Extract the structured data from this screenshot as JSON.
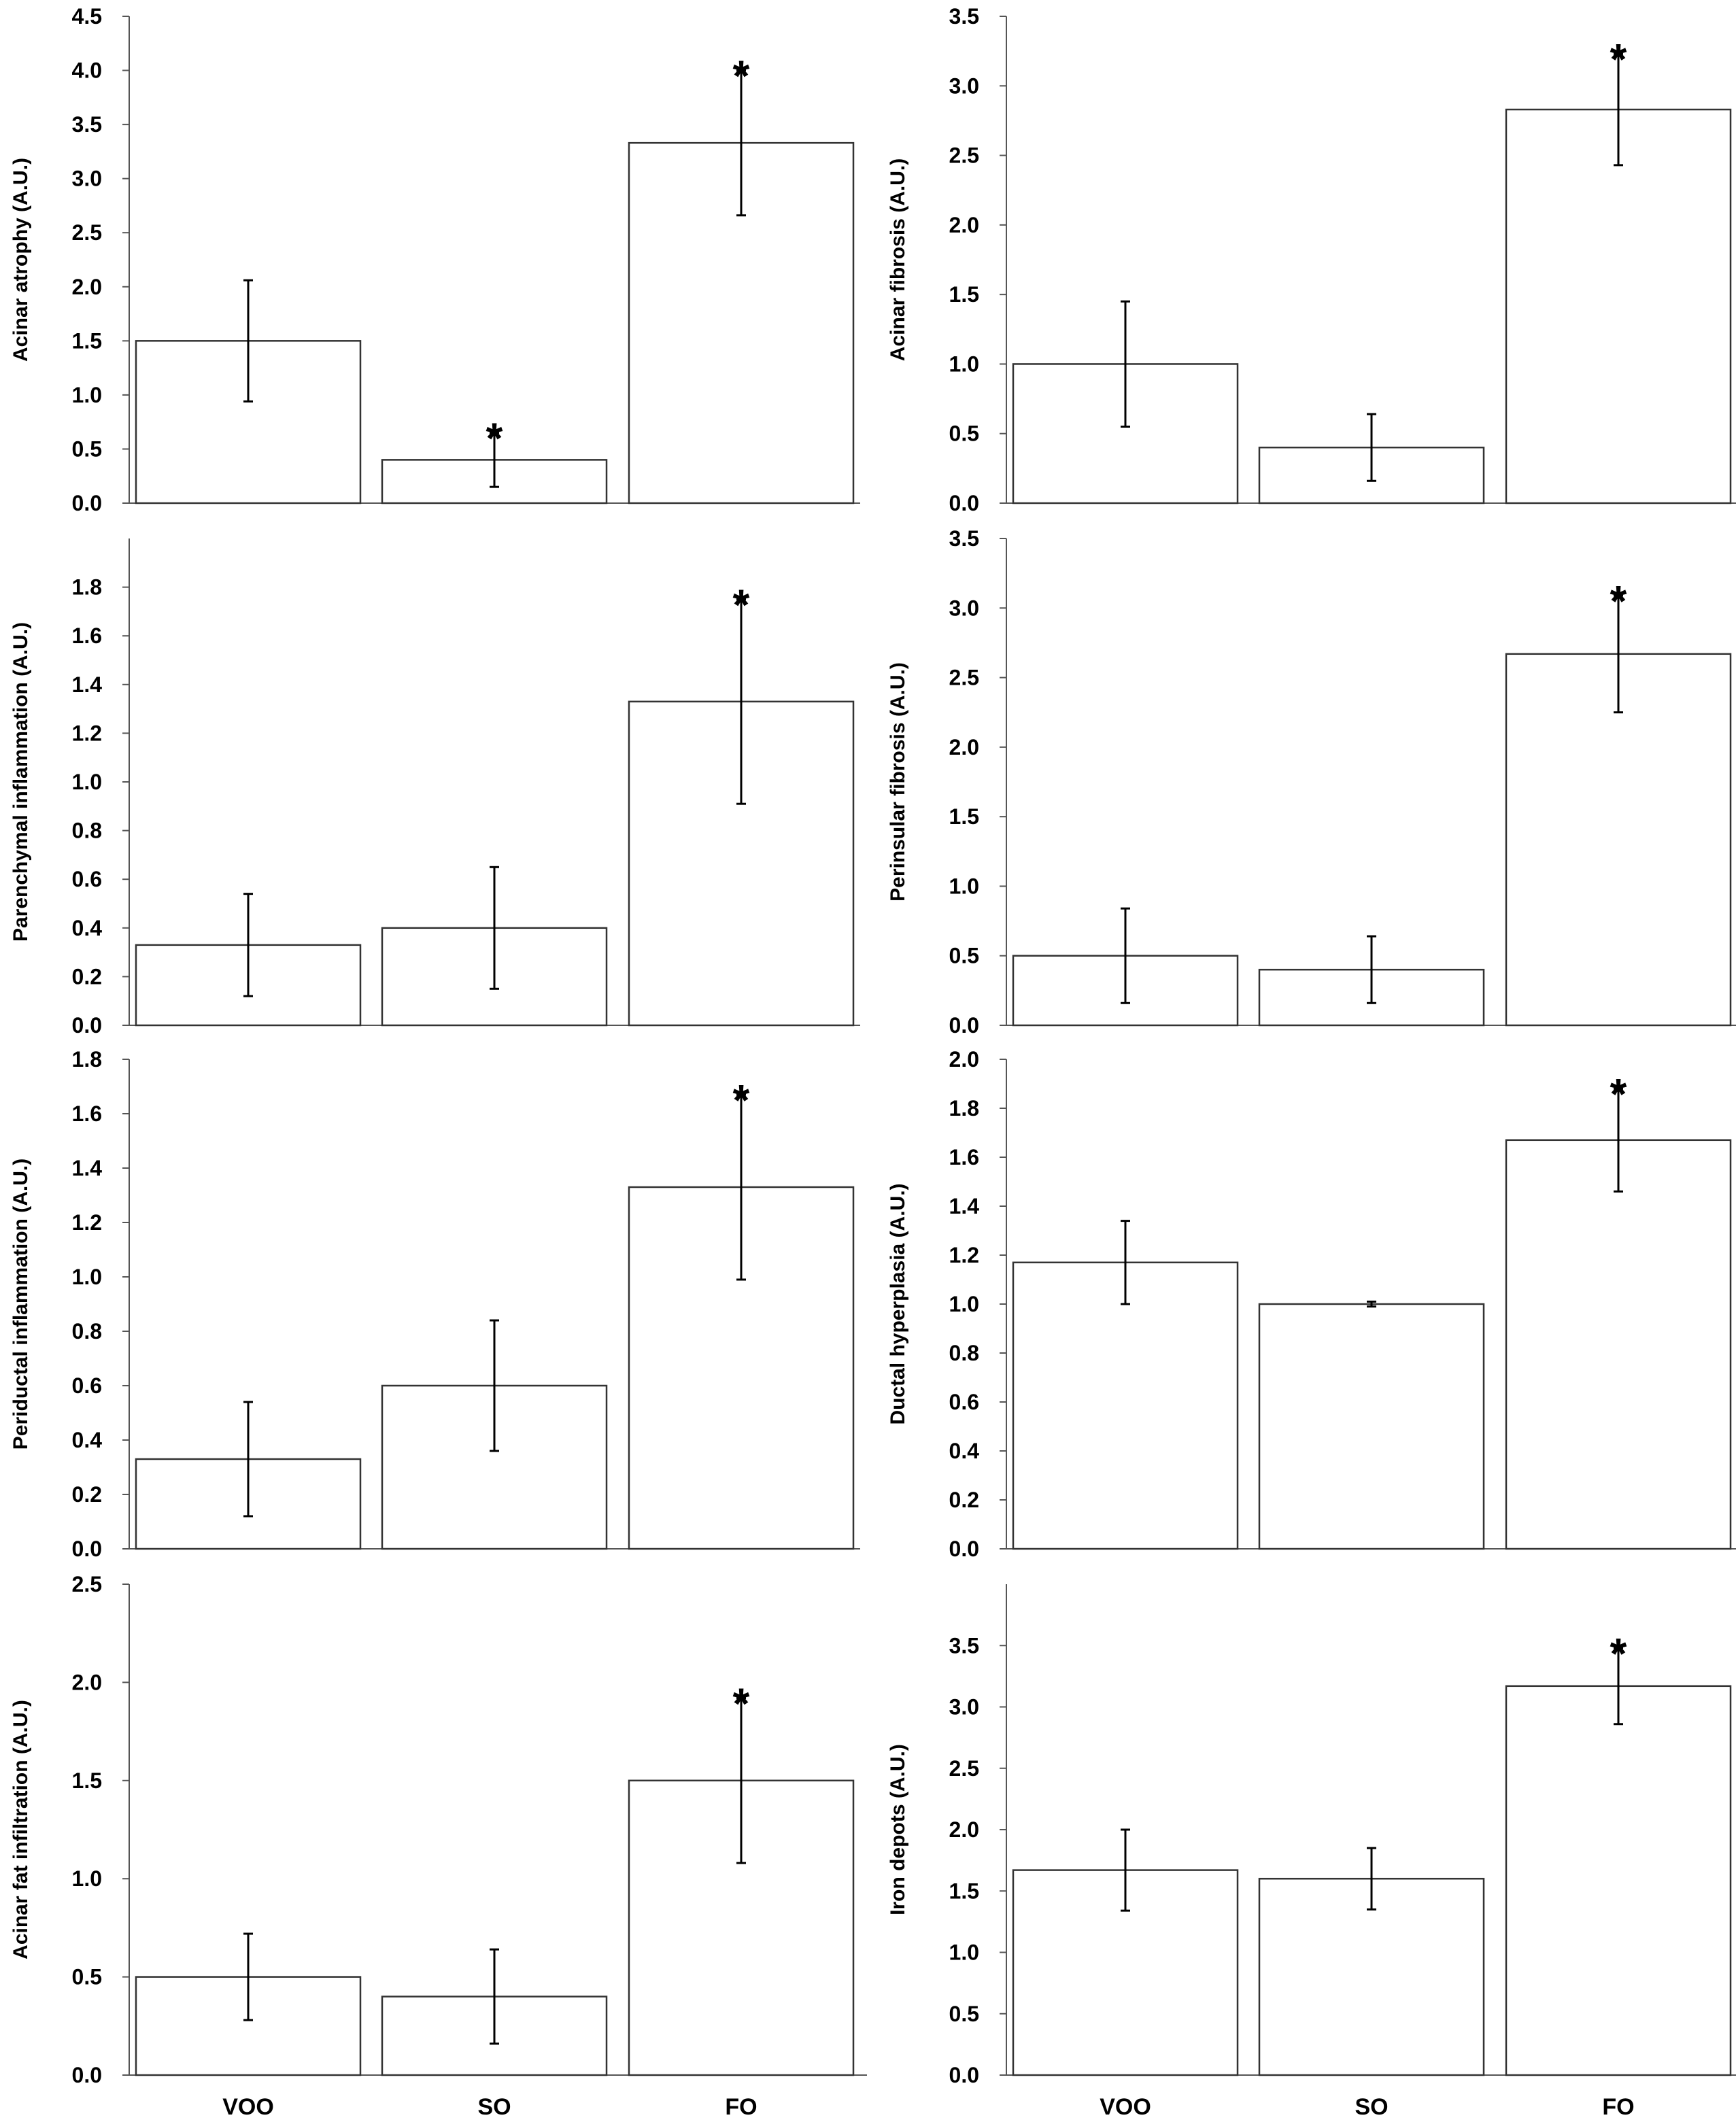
{
  "chart_data": [
    {
      "type": "bar",
      "ylabel": "Acinar atrophy (A.U.)",
      "categories": [
        "VOO",
        "SO",
        "FO"
      ],
      "values": [
        1.5,
        0.4,
        3.33
      ],
      "errors": [
        0.56,
        0.25,
        0.67
      ],
      "significant": [
        false,
        true,
        true
      ],
      "ylim": [
        0,
        4.5
      ],
      "yticks": [
        "0.0",
        "0.5",
        "1.0",
        "1.5",
        "2.0",
        "2.5",
        "3.0",
        "3.5",
        "4.0",
        "4.5"
      ],
      "xtick_labels_visible": false
    },
    {
      "type": "bar",
      "ylabel": "Acinar fibrosis (A.U.)",
      "categories": [
        "VOO",
        "SO",
        "FO"
      ],
      "values": [
        1.0,
        0.4,
        2.83
      ],
      "errors": [
        0.45,
        0.24,
        0.4
      ],
      "significant": [
        false,
        false,
        true
      ],
      "ylim": [
        0,
        3.5
      ],
      "yticks": [
        "0.0",
        "0.5",
        "1.0",
        "1.5",
        "2.0",
        "2.5",
        "3.0",
        "3.5"
      ],
      "xtick_labels_visible": false
    },
    {
      "type": "bar",
      "ylabel": "Parenchymal inflammation (A.U.)",
      "categories": [
        "VOO",
        "SO",
        "FO"
      ],
      "values": [
        0.33,
        0.4,
        1.33
      ],
      "errors": [
        0.21,
        0.25,
        0.42
      ],
      "significant": [
        false,
        false,
        true
      ],
      "ylim": [
        0,
        2.0
      ],
      "yticks": [
        "0.0",
        "0.2",
        "0.4",
        "0.6",
        "0.8",
        "1.0",
        "1.2",
        "1.4",
        "1.6",
        "1.8"
      ],
      "xtick_labels_visible": false
    },
    {
      "type": "bar",
      "ylabel": "Perinsular fibrosis (A.U.)",
      "categories": [
        "VOO",
        "SO",
        "FO"
      ],
      "values": [
        0.5,
        0.4,
        2.67
      ],
      "errors": [
        0.34,
        0.24,
        0.42
      ],
      "significant": [
        false,
        false,
        true
      ],
      "ylim": [
        0,
        3.5
      ],
      "yticks": [
        "0.0",
        "0.5",
        "1.0",
        "1.5",
        "2.0",
        "2.5",
        "3.0",
        "3.5"
      ],
      "xtick_labels_visible": false
    },
    {
      "type": "bar",
      "ylabel": "Periductal inflammation (A.U.)",
      "categories": [
        "VOO",
        "SO",
        "FO"
      ],
      "values": [
        0.33,
        0.6,
        1.33
      ],
      "errors": [
        0.21,
        0.24,
        0.34
      ],
      "significant": [
        false,
        false,
        true
      ],
      "ylim": [
        0,
        1.8
      ],
      "yticks": [
        "0.0",
        "0.2",
        "0.4",
        "0.6",
        "0.8",
        "1.0",
        "1.2",
        "1.4",
        "1.6",
        "1.8"
      ],
      "xtick_labels_visible": false
    },
    {
      "type": "bar",
      "ylabel": "Ductal hyperplasia (A.U.)",
      "categories": [
        "VOO",
        "SO",
        "FO"
      ],
      "values": [
        1.17,
        1.0,
        1.67
      ],
      "errors": [
        0.17,
        0.01,
        0.21
      ],
      "significant": [
        false,
        false,
        true
      ],
      "ylim": [
        0,
        2.0
      ],
      "yticks": [
        "0.0",
        "0.2",
        "0.4",
        "0.6",
        "0.8",
        "1.0",
        "1.2",
        "1.4",
        "1.6",
        "1.8",
        "2.0"
      ],
      "xtick_labels_visible": false
    },
    {
      "type": "bar",
      "ylabel": "Acinar fat infiltration (A.U.)",
      "categories": [
        "VOO",
        "SO",
        "FO"
      ],
      "values": [
        0.5,
        0.4,
        1.5
      ],
      "errors": [
        0.22,
        0.24,
        0.42
      ],
      "significant": [
        false,
        false,
        true
      ],
      "ylim": [
        0,
        2.5
      ],
      "yticks": [
        "0.0",
        "0.5",
        "1.0",
        "1.5",
        "2.0",
        "2.5"
      ],
      "xtick_labels_visible": true
    },
    {
      "type": "bar",
      "ylabel": "Iron depots (A.U.)",
      "categories": [
        "VOO",
        "SO",
        "FO"
      ],
      "values": [
        1.67,
        1.6,
        3.17
      ],
      "errors": [
        0.33,
        0.25,
        0.31
      ],
      "significant": [
        false,
        false,
        true
      ],
      "ylim": [
        0,
        4.0
      ],
      "yticks": [
        "0.0",
        "0.5",
        "1.0",
        "1.5",
        "2.0",
        "2.5",
        "3.0",
        "3.5"
      ],
      "xtick_labels_visible": true
    }
  ],
  "significance_marker": "*",
  "colors": {
    "bar_fill": "#ffffff",
    "bar_stroke": "#333333",
    "axis": "#555555",
    "text": "#000000"
  }
}
